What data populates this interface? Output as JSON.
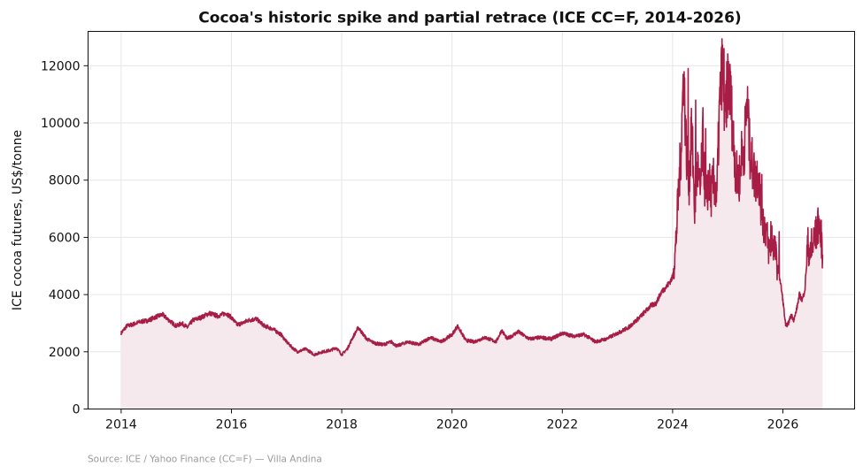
{
  "chart_data": {
    "type": "area",
    "title": "Cocoa's historic spike and partial retrace (ICE CC=F, 2014-2026)",
    "xlabel": "",
    "ylabel": "ICE cocoa futures, US$/tonne",
    "xlim": [
      2013.4,
      2027.3
    ],
    "ylim": [
      0,
      13200
    ],
    "x_ticks": [
      "2014",
      "2016",
      "2018",
      "2020",
      "2022",
      "2024",
      "2026"
    ],
    "y_ticks": [
      "0",
      "2000",
      "4000",
      "6000",
      "8000",
      "10000",
      "12000"
    ],
    "grid": true,
    "line_color": "#a81d45",
    "fill_color": "#f6e9ee",
    "series": [
      {
        "x": [
          2014.0,
          2014.1,
          2014.2,
          2014.35,
          2014.5,
          2014.6,
          2014.75,
          2014.9,
          2015.0,
          2015.1,
          2015.2,
          2015.3,
          2015.45,
          2015.6,
          2015.75,
          2015.9,
          2016.0,
          2016.1,
          2016.2,
          2016.3,
          2016.45,
          2016.6,
          2016.75,
          2016.9,
          2017.0,
          2017.1,
          2017.2,
          2017.35,
          2017.5,
          2017.65,
          2017.8,
          2017.9,
          2018.0,
          2018.1,
          2018.2,
          2018.3,
          2018.45,
          2018.6,
          2018.75,
          2018.9,
          2019.0,
          2019.2,
          2019.4,
          2019.6,
          2019.8,
          2020.0,
          2020.1,
          2020.25,
          2020.4,
          2020.6,
          2020.8,
          2020.9,
          2021.0,
          2021.2,
          2021.4,
          2021.6,
          2021.8,
          2022.0,
          2022.2,
          2022.4,
          2022.6,
          2022.8,
          2023.0,
          2023.2,
          2023.4,
          2023.5,
          2023.6,
          2023.7,
          2023.8,
          2023.9,
          2024.0,
          2024.05,
          2024.1,
          2024.15,
          2024.2,
          2024.25,
          2024.3,
          2024.35,
          2024.4,
          2024.45,
          2024.5,
          2024.55,
          2024.6,
          2024.65,
          2024.7,
          2024.75,
          2024.8,
          2024.85,
          2024.9,
          2024.95,
          2025.0,
          2025.05,
          2025.1,
          2025.15,
          2025.2,
          2025.25,
          2025.3,
          2025.35,
          2025.4,
          2025.45,
          2025.5,
          2025.55,
          2025.6,
          2025.65,
          2025.7,
          2025.75,
          2025.8,
          2025.85,
          2025.9,
          2025.95,
          2026.0,
          2026.05,
          2026.1,
          2026.15,
          2026.2,
          2026.25,
          2026.3,
          2026.35,
          2026.4,
          2026.45,
          2026.5,
          2026.55,
          2026.6,
          2026.65,
          2026.7,
          2026.72
        ],
        "values": [
          2650,
          2900,
          2950,
          3050,
          3100,
          3200,
          3300,
          3050,
          2900,
          3000,
          2850,
          3100,
          3200,
          3350,
          3250,
          3350,
          3200,
          2950,
          3000,
          3100,
          3150,
          2900,
          2800,
          2600,
          2350,
          2150,
          2000,
          2100,
          1900,
          2000,
          2050,
          2150,
          1900,
          2100,
          2500,
          2850,
          2450,
          2300,
          2250,
          2350,
          2200,
          2350,
          2250,
          2500,
          2350,
          2600,
          2900,
          2400,
          2350,
          2500,
          2350,
          2750,
          2450,
          2700,
          2450,
          2500,
          2450,
          2650,
          2550,
          2600,
          2350,
          2450,
          2650,
          2850,
          3200,
          3400,
          3600,
          3700,
          4100,
          4300,
          4600,
          5500,
          7300,
          9000,
          11800,
          9000,
          8000,
          9800,
          7000,
          8500,
          7500,
          9500,
          7000,
          8000,
          7500,
          8000,
          7300,
          10500,
          12000,
          10000,
          11500,
          11000,
          9500,
          8200,
          8000,
          8500,
          9200,
          10800,
          9000,
          8500,
          8000,
          8300,
          7200,
          6500,
          6200,
          5500,
          6000,
          5600,
          5000,
          4500,
          3800,
          2900,
          3000,
          3300,
          3100,
          3500,
          4000,
          3800,
          4200,
          5800,
          5300,
          5800,
          6100,
          6500,
          5900,
          5400
        ],
        "spikes": [
          [
            2024.28,
            11900
          ],
          [
            2024.33,
            10200
          ],
          [
            2024.42,
            10800
          ],
          [
            2024.6,
            9800
          ],
          [
            2024.93,
            12600
          ],
          [
            2025.05,
            11800
          ],
          [
            2025.25,
            9700
          ],
          [
            2025.38,
            10300
          ],
          [
            2025.62,
            8200
          ],
          [
            2025.78,
            6550
          ],
          [
            2025.93,
            6200
          ],
          [
            2026.52,
            6300
          ],
          [
            2026.65,
            6650
          ]
        ]
      }
    ]
  },
  "source": "Source: ICE / Yahoo Finance (CC=F) — Villa Andina"
}
